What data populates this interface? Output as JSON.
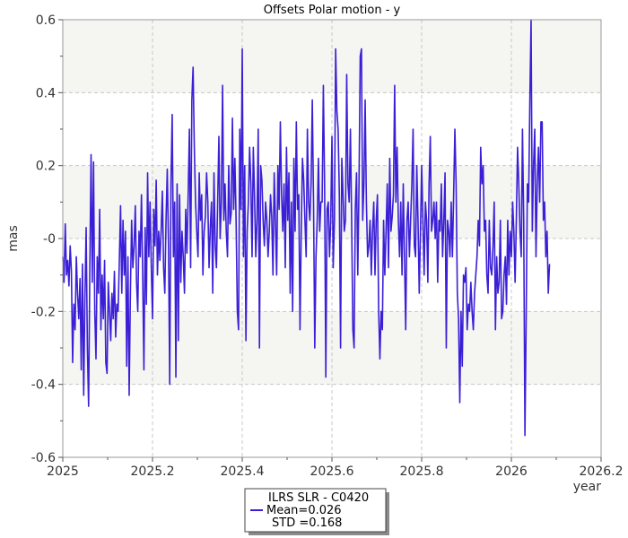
{
  "chart_data": {
    "type": "line",
    "title": "Offsets Polar motion - y",
    "xlabel": "year",
    "ylabel": "mas",
    "xlim": [
      2025,
      2026.2
    ],
    "ylim": [
      -0.6,
      0.6
    ],
    "x_ticks": [
      2025,
      2025.2,
      2025.4,
      2025.6,
      2025.8,
      2026,
      2026.2
    ],
    "x_tick_labels": [
      "2025",
      "2025.2",
      "2025.4",
      "2025.6",
      "2025.8",
      "2026",
      "2026.2"
    ],
    "y_ticks": [
      -0.6,
      -0.4,
      -0.2,
      0,
      0.2,
      0.4,
      0.6
    ],
    "y_tick_labels": [
      "-0.6",
      "-0.4",
      "-0.2",
      "-0",
      "0.2",
      "0.4",
      "0.6"
    ],
    "grid": true,
    "band_color": "#f5f5f1",
    "series": [
      {
        "name": "ILRS SLR - C0420",
        "color": "#3a1fd6",
        "x_start": 2025.0,
        "x_step": 0.00274,
        "values": [
          -0.05,
          -0.12,
          0.04,
          -0.1,
          -0.06,
          -0.13,
          -0.02,
          -0.09,
          -0.34,
          -0.18,
          -0.25,
          -0.05,
          -0.15,
          -0.22,
          -0.11,
          -0.36,
          -0.07,
          -0.43,
          -0.16,
          0.03,
          -0.3,
          -0.46,
          -0.08,
          0.23,
          -0.12,
          0.21,
          -0.2,
          -0.33,
          -0.05,
          -0.15,
          0.08,
          -0.25,
          -0.1,
          -0.22,
          -0.06,
          -0.34,
          -0.37,
          -0.12,
          -0.2,
          -0.28,
          -0.15,
          -0.22,
          -0.09,
          -0.27,
          -0.18,
          -0.2,
          -0.06,
          0.09,
          -0.15,
          0.05,
          -0.1,
          0.02,
          -0.35,
          -0.05,
          -0.43,
          -0.15,
          0.05,
          -0.08,
          -0.02,
          0.09,
          -0.12,
          -0.2,
          0.02,
          -0.05,
          0.12,
          -0.1,
          -0.36,
          0.03,
          -0.18,
          0.18,
          -0.05,
          0.1,
          -0.08,
          -0.22,
          0.08,
          -0.02,
          0.16,
          -0.1,
          0.02,
          -0.06,
          0.02,
          0.13,
          -0.08,
          -0.15,
          0.05,
          0.19,
          -0.02,
          -0.4,
          0.15,
          0.34,
          -0.05,
          0.1,
          -0.38,
          0.15,
          -0.28,
          0.12,
          -0.12,
          0.02,
          -0.05,
          -0.15,
          0.08,
          -0.04,
          0.12,
          0.3,
          -0.08,
          0.38,
          0.47,
          0.25,
          0.1,
          0.02,
          -0.05,
          0.18,
          0.05,
          0.12,
          -0.1,
          0.02,
          0.06,
          0.18,
          0.1,
          -0.08,
          0.03,
          0.1,
          -0.15,
          0.18,
          -0.02,
          -0.08,
          0.1,
          0.28,
          0.0,
          0.1,
          0.42,
          0.05,
          0.15,
          0.02,
          -0.05,
          0.2,
          0.04,
          0.07,
          0.33,
          0.08,
          0.22,
          0.05,
          -0.2,
          -0.25,
          0.3,
          0.08,
          0.52,
          -0.05,
          0.2,
          -0.28,
          0.02,
          0.1,
          0.25,
          0.15,
          -0.05,
          0.25,
          0.12,
          -0.05,
          0.05,
          0.3,
          -0.3,
          0.2,
          0.16,
          0.05,
          -0.02,
          0.1,
          0.05,
          -0.05,
          0.02,
          0.12,
          0.06,
          -0.1,
          0.18,
          0.05,
          -0.1,
          0.2,
          0.08,
          0.32,
          0.12,
          0.02,
          0.15,
          -0.08,
          0.25,
          0.05,
          0.18,
          -0.15,
          0.1,
          -0.2,
          0.22,
          0.02,
          0.32,
          0.08,
          0.12,
          -0.25,
          0.02,
          0.22,
          0.16,
          0.05,
          -0.05,
          0.3,
          0.1,
          0.05,
          0.15,
          0.38,
          0.1,
          -0.3,
          -0.05,
          0.05,
          0.22,
          0.02,
          0.1,
          0.1,
          0.42,
          0.15,
          -0.38,
          0.08,
          0.1,
          -0.05,
          0.05,
          0.28,
          -0.08,
          0.05,
          0.52,
          0.35,
          0.3,
          0.12,
          -0.3,
          0.22,
          0.12,
          0.02,
          0.05,
          0.45,
          0.15,
          0.1,
          0.3,
          0.05,
          -0.25,
          -0.3,
          0.08,
          0.18,
          -0.1,
          0.15,
          0.5,
          0.52,
          0.05,
          0.15,
          0.38,
          0.1,
          -0.05,
          -0.02,
          0.05,
          -0.1,
          0.02,
          0.1,
          -0.1,
          0.05,
          0.12,
          -0.2,
          -0.33,
          -0.2,
          -0.25,
          0.05,
          -0.1,
          0.02,
          0.15,
          -0.08,
          0.22,
          0.02,
          0.06,
          0.12,
          0.42,
          0.1,
          0.25,
          0.05,
          -0.05,
          0.1,
          -0.1,
          0.15,
          -0.05,
          -0.25,
          0.05,
          0.1,
          -0.05,
          0.05,
          0.15,
          0.3,
          -0.02,
          -0.05,
          0.2,
          0.05,
          -0.15,
          0.02,
          0.2,
          0.05,
          -0.1,
          0.1,
          0.05,
          -0.12,
          0.15,
          0.28,
          0.02,
          0.05,
          0.1,
          0.0,
          0.1,
          -0.12,
          0.05,
          0.02,
          0.15,
          -0.05,
          0.05,
          0.18,
          -0.3,
          0.05,
          0.02,
          -0.05,
          0.1,
          -0.05,
          0.12,
          0.3,
          0.15,
          -0.15,
          -0.22,
          -0.45,
          -0.2,
          -0.35,
          -0.1,
          -0.12,
          -0.08,
          -0.25,
          -0.18,
          -0.2,
          -0.12,
          -0.2,
          -0.25,
          -0.15,
          -0.1,
          -0.05,
          0.05,
          -0.02,
          0.25,
          0.15,
          0.2,
          0.02,
          0.05,
          -0.1,
          -0.15,
          0.05,
          -0.08,
          -0.1,
          -0.02,
          0.1,
          -0.25,
          -0.05,
          -0.15,
          -0.12,
          0.05,
          -0.22,
          -0.2,
          -0.1,
          -0.05,
          -0.18,
          0.05,
          -0.1,
          0.02,
          -0.05,
          0.1,
          0.02,
          -0.12,
          0.05,
          0.25,
          0.15,
          0.02,
          -0.05,
          0.3,
          0.05,
          -0.54,
          -0.22,
          0.15,
          0.1,
          0.38,
          0.6,
          0.02,
          0.2,
          0.3,
          -0.05,
          0.15,
          0.25,
          0.1,
          0.32,
          0.32,
          0.05,
          0.1,
          -0.05,
          0.02,
          -0.15,
          -0.07
        ]
      }
    ],
    "legend": {
      "placement": "bottom-center",
      "lines": [
        "ILRS SLR - C0420",
        "Mean=0.026",
        "STD =0.168"
      ]
    }
  }
}
